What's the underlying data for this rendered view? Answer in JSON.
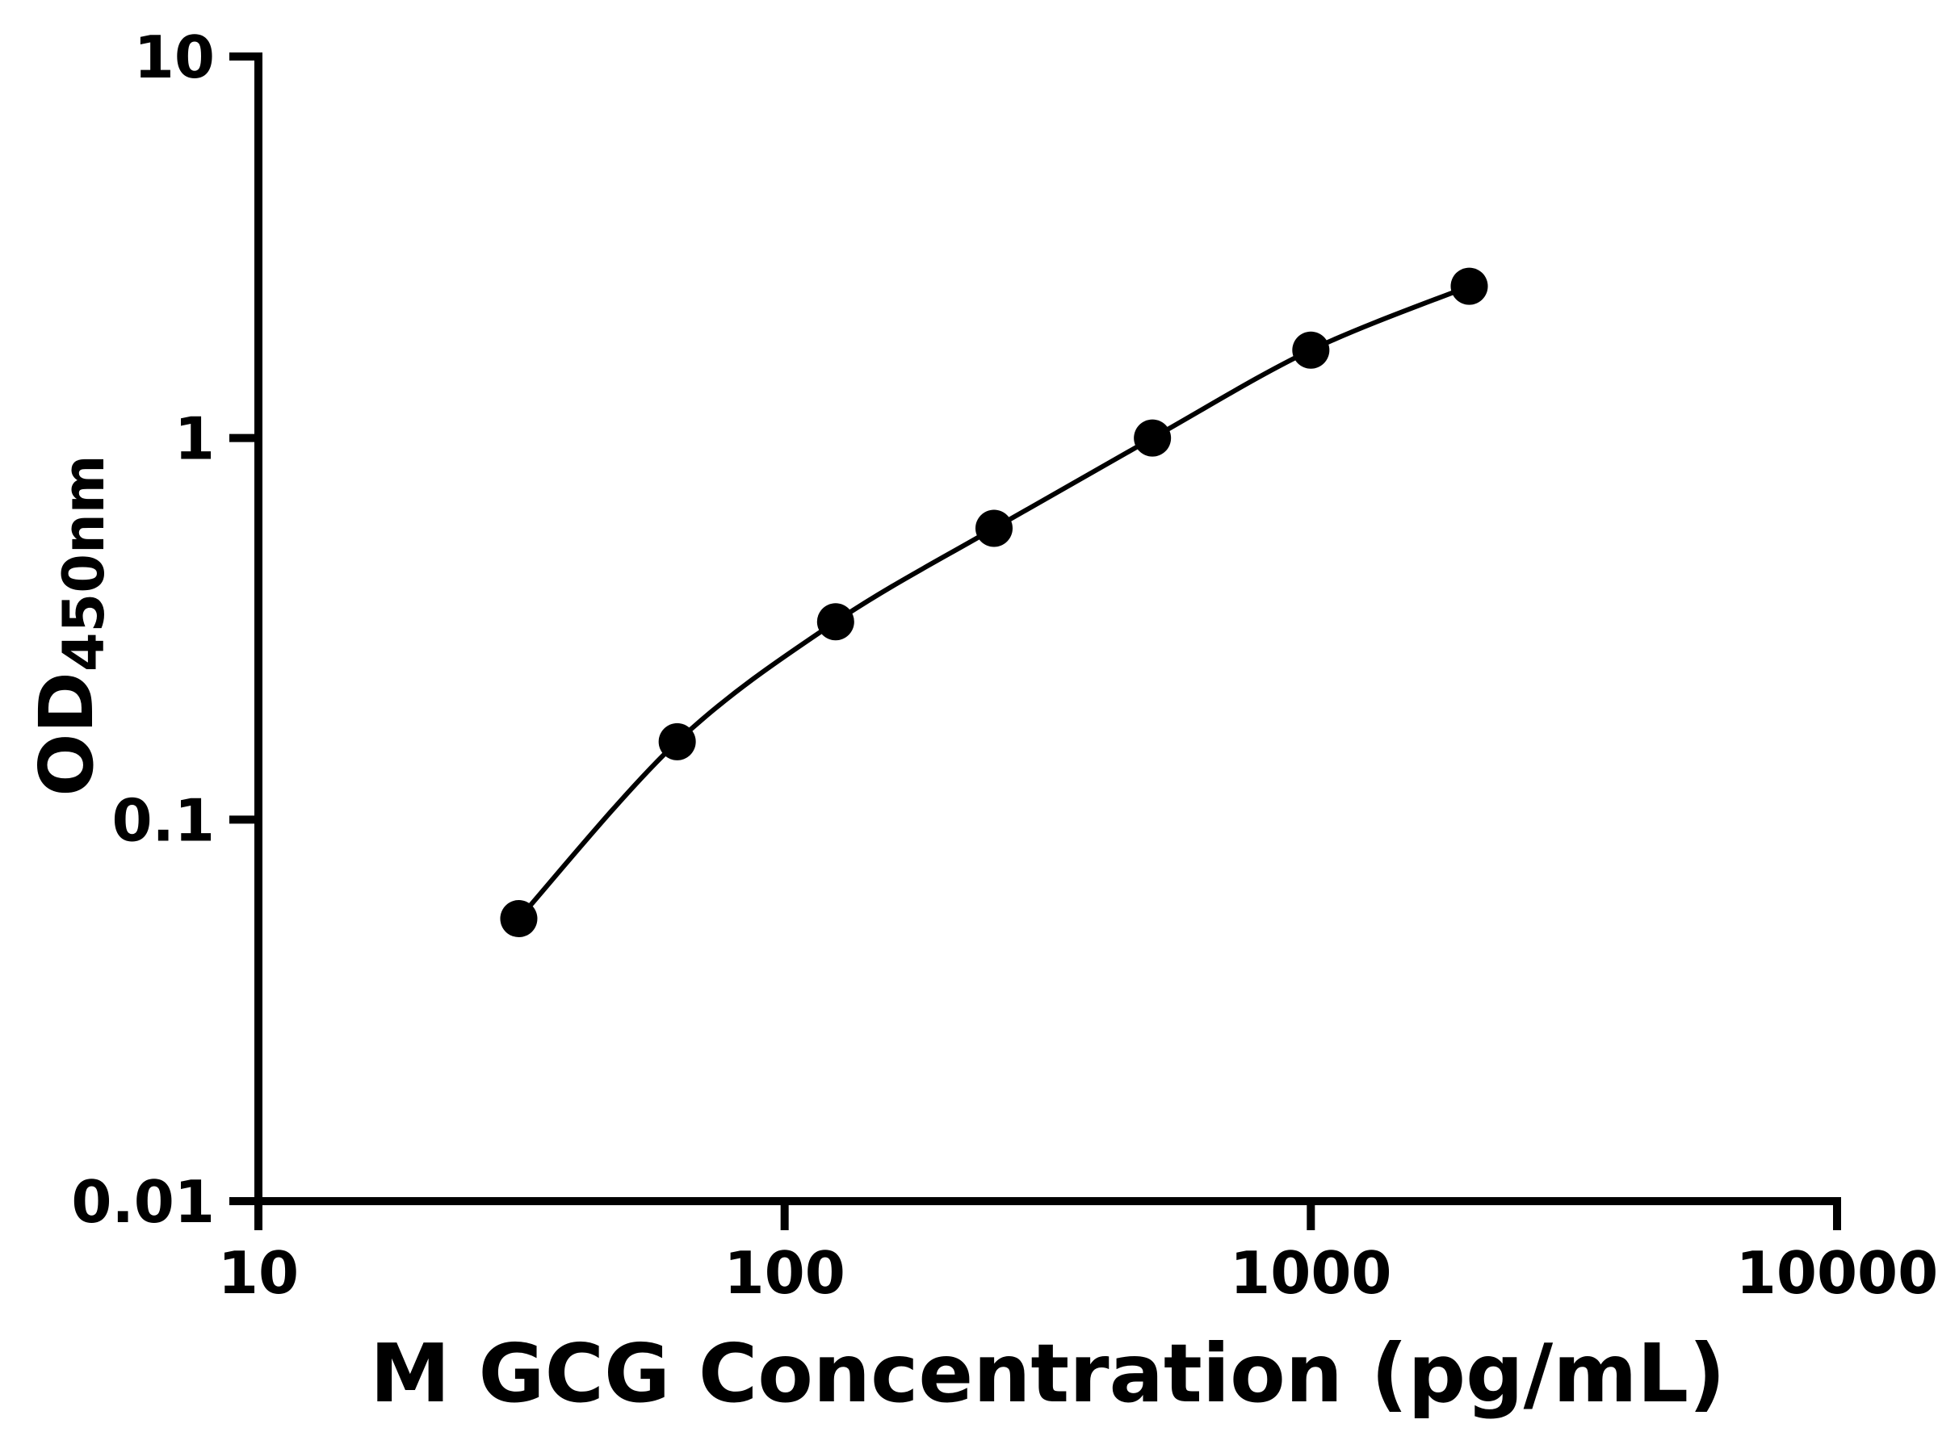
{
  "chart_data": {
    "type": "scatter",
    "x": [
      31.25,
      62.5,
      125,
      250,
      500,
      1000,
      2000
    ],
    "y": [
      0.055,
      0.16,
      0.33,
      0.58,
      1.0,
      1.7,
      2.5
    ],
    "xlabel": "M GCG Concentration (pg/mL)",
    "ylabel_main": "OD",
    "ylabel_sub": "450nm",
    "xscale": "log",
    "yscale": "log",
    "xlim": [
      10,
      10000
    ],
    "ylim": [
      0.01,
      10
    ],
    "x_ticks": [
      10,
      100,
      1000,
      10000
    ],
    "x_tick_labels": [
      "10",
      "100",
      "1000",
      "10000"
    ],
    "y_ticks": [
      0.01,
      0.1,
      1,
      10
    ],
    "y_tick_labels": [
      "0.01",
      "0.1",
      "1",
      "10"
    ],
    "grid": false,
    "legend": "none",
    "marker_style": "filled-circle",
    "marker_color": "#000000",
    "line_color": "#000000",
    "axis_color": "#000000",
    "background": "#ffffff"
  }
}
